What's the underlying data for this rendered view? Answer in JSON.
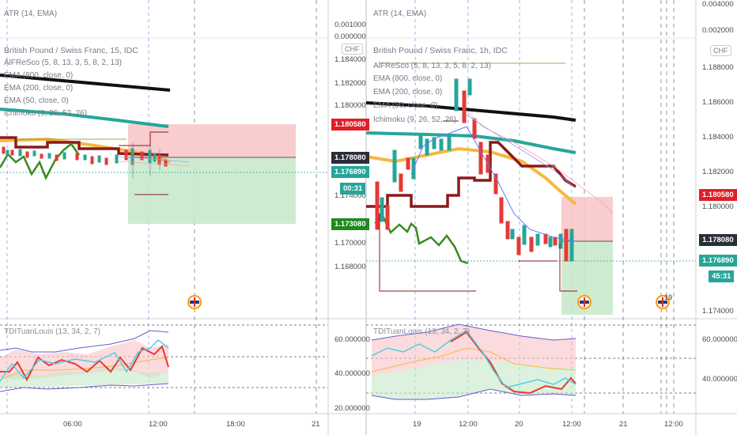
{
  "left_panel": {
    "atr_label": "ATR (14, EMA)",
    "atr_ticks": [
      "0.001000",
      "0.000000"
    ],
    "title": "British Pound / Swiss Franc, 15, IDC",
    "indicators": [
      "AlFReSco (5, 8, 13, 3, 5, 8, 2, 13)",
      "EMA (800, close, 0)",
      "EMA (200, close, 0)",
      "EMA (50, close, 0)",
      "Ichimoku (9, 26, 52, 26)"
    ],
    "currency_button": "CHF",
    "price_ticks": [
      "1.184000",
      "1.182000",
      "1.180000",
      "1.178000",
      "1.176000",
      "1.174000",
      "1.172000",
      "1.170000",
      "1.168000"
    ],
    "price_tags": {
      "stop": "1.180580",
      "entry": "1.178080",
      "current": "1.176890",
      "countdown": "00:31",
      "target": "1.173080"
    },
    "osc_label": "TDITuanLouis (13, 34, 2, 7)",
    "osc_ticks": [
      "60.000000",
      "40.000000",
      "20.000000"
    ],
    "time_ticks": [
      "06:00",
      "12:00",
      "18:00",
      "21"
    ]
  },
  "right_panel": {
    "atr_label": "ATR (14, EMA)",
    "atr_ticks": [
      "0.004000",
      "0.002000"
    ],
    "title": "British Pound / Swiss Franc, 1h, IDC",
    "indicators": [
      "AlFReSco (5, 8, 13, 3, 5, 8, 2, 13)",
      "EMA (800, close, 0)",
      "EMA (200, close, 0)",
      "EMA (50, close, 0)",
      "Ichimoku (9, 26, 52, 26)"
    ],
    "currency_button": "CHF",
    "price_ticks": [
      "1.188000",
      "1.186000",
      "1.184000",
      "1.182000",
      "1.180000",
      "1.178000",
      "1.176000",
      "1.174000",
      "1.172000",
      "1.170000"
    ],
    "price_tags": {
      "stop": "1.180580",
      "entry": "1.178080",
      "current": "1.176890",
      "countdown": "45:31"
    },
    "event_badge": "19",
    "osc_label": "TDITuanLouis (13, 34, 2, 7)",
    "osc_ticks": [
      "60.000000",
      "40.000000"
    ],
    "time_ticks": [
      "19",
      "12:00",
      "20",
      "12:00",
      "21",
      "12:00"
    ]
  },
  "colors": {
    "ema800": "#111111",
    "ema200": "#26a69a",
    "ema50": "#f5b940",
    "ichimoku_base": "#8b1a1a",
    "ichimoku_lag": "#3a8a1f",
    "stop_zone": "#f8c3c6",
    "target_zone": "#c5e8c8",
    "stop_tag": "#e21e26",
    "entry_tag": "#2a2e39",
    "current_tag": "#26a69a",
    "target_tag": "#1e8a1e",
    "tdi_red": "#e53935",
    "tdi_cyan": "#4dd0e1",
    "tdi_band": "#6a5acd"
  }
}
